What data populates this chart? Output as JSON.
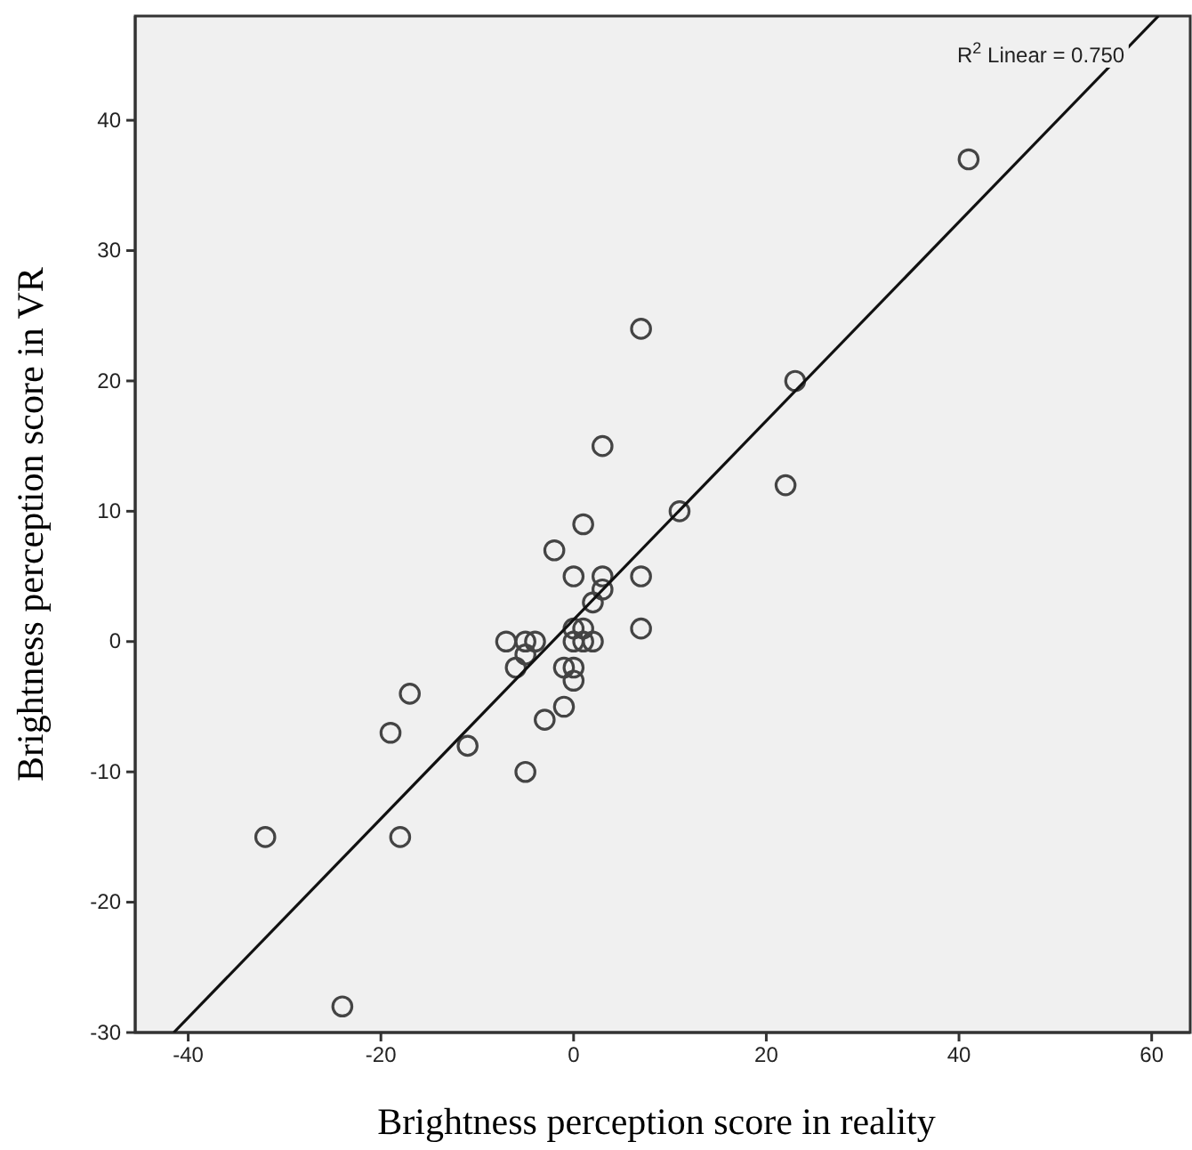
{
  "chart_data": {
    "type": "scatter",
    "xlabel": "Brightness perception score in reality",
    "ylabel": "Brightness perception score in VR",
    "xlim": [
      -45.5,
      64
    ],
    "ylim": [
      -30,
      48
    ],
    "xticks": [
      -40,
      -20,
      0,
      20,
      40,
      60
    ],
    "yticks": [
      -30,
      -20,
      -10,
      0,
      10,
      20,
      30,
      40
    ],
    "grid": false,
    "marker": "circle",
    "annotations": [
      "R$^{2}$ Linear = 0.750"
    ],
    "series": [
      {
        "color": "#444444",
        "x": [
          41,
          7,
          23,
          3,
          22,
          11,
          1,
          -2,
          0,
          3,
          7,
          3,
          2,
          7,
          0,
          1,
          0,
          1,
          2,
          -7,
          -5,
          -4,
          -5,
          -6,
          -1,
          0,
          0,
          -1,
          -3,
          -17,
          -19,
          -11,
          -5,
          -32,
          -18,
          -24
        ],
        "values": [
          37,
          24,
          20,
          15,
          12,
          10,
          9,
          7,
          5,
          5,
          5,
          4,
          3,
          1,
          1,
          1,
          0,
          0,
          0,
          0,
          0,
          0,
          -1,
          -2,
          -2,
          -2,
          -3,
          -5,
          -6,
          -4,
          -7,
          -8,
          -10,
          -15,
          -15,
          -28
        ]
      },
      {
        "type": "line",
        "color": "#111111",
        "marker": "none",
        "line_style": "solid",
        "x": [
          -41.5,
          60.7
        ],
        "values": [
          -30,
          48
        ]
      }
    ]
  }
}
